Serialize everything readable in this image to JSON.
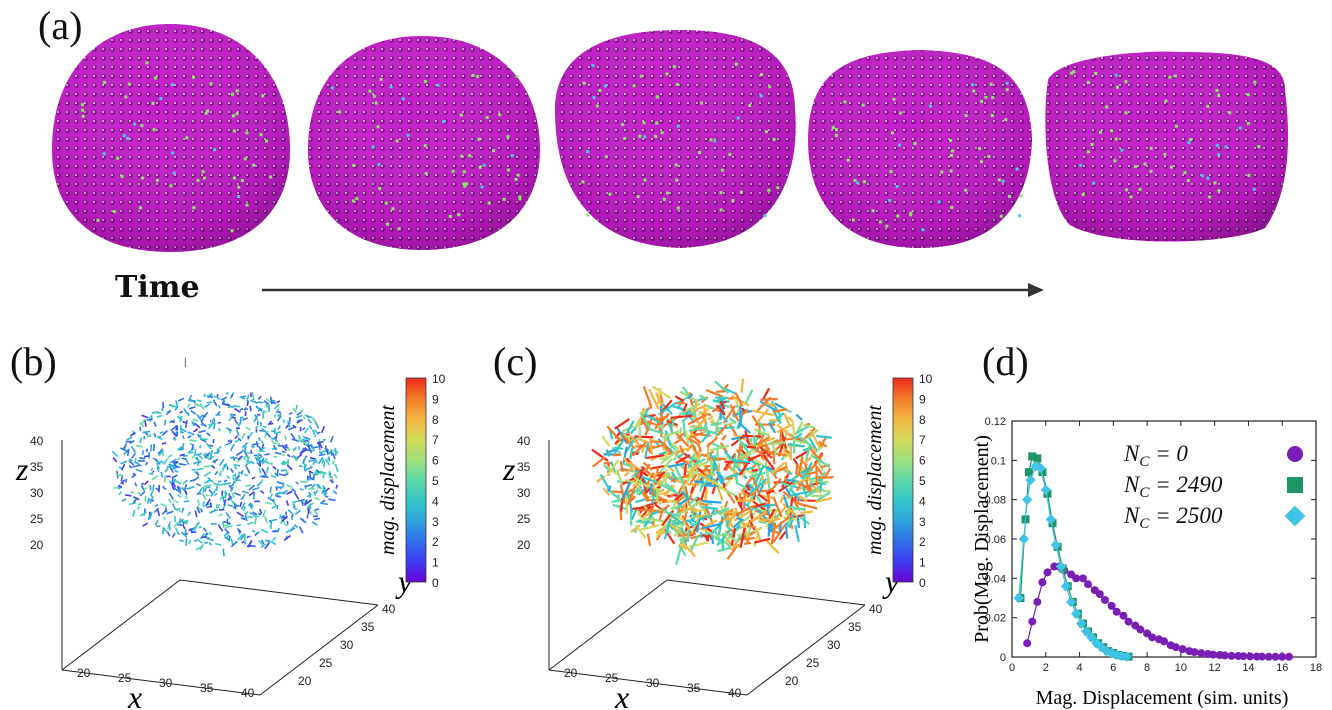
{
  "panels": {
    "a": {
      "label": "(a)",
      "time_label": "Time"
    },
    "b": {
      "label": "(b)"
    },
    "c": {
      "label": "(c)"
    },
    "d": {
      "label": "(d)"
    }
  },
  "scatter3d": {
    "z_ticks": [
      "40",
      "35",
      "30",
      "25",
      "20"
    ],
    "x_ticks": [
      "20",
      "25",
      "30",
      "35",
      "40"
    ],
    "y_ticks": [
      "40",
      "35",
      "30",
      "25",
      "20"
    ],
    "xlabel": "x",
    "ylabel": "y",
    "zlabel": "z",
    "colorbar_ticks": [
      "10",
      "9",
      "8",
      "7",
      "6",
      "5",
      "4",
      "3",
      "2",
      "1",
      "0"
    ],
    "colorbar_label": "mag. displacement"
  },
  "colors": {
    "membrane": "#c21ec8",
    "membrane_dark": "#8e0f95",
    "patch": "#8de26a",
    "nc0": "#7a1fb5",
    "nc2490": "#1e9566",
    "nc2500": "#3fc4e6"
  },
  "chart_data": {
    "type": "line",
    "xlabel": "Mag. Displacement (sim. units)",
    "ylabel": "Prob(Mag. Displacement)",
    "xlim": [
      0,
      18
    ],
    "ylim": [
      0,
      0.12
    ],
    "x_ticks": [
      "0",
      "2",
      "4",
      "6",
      "8",
      "10",
      "12",
      "14",
      "16",
      "18"
    ],
    "y_ticks": [
      "0",
      "0.02",
      "0.04",
      "0.06",
      "0.08",
      "0.1",
      "0.12"
    ],
    "legend_position": "top-right",
    "series": [
      {
        "name": "N_C = 0",
        "name_main": "N",
        "name_sub": "C",
        "name_rest": " = 0",
        "marker": "circle",
        "color": "#7a1fb5",
        "points": [
          [
            0.9,
            0.007
          ],
          [
            1.2,
            0.018
          ],
          [
            1.5,
            0.028
          ],
          [
            1.8,
            0.038
          ],
          [
            2.1,
            0.043
          ],
          [
            2.5,
            0.046
          ],
          [
            2.8,
            0.046
          ],
          [
            3.1,
            0.044
          ],
          [
            3.5,
            0.042
          ],
          [
            3.8,
            0.04
          ],
          [
            4.2,
            0.04
          ],
          [
            4.5,
            0.037
          ],
          [
            4.9,
            0.034
          ],
          [
            5.2,
            0.032
          ],
          [
            5.5,
            0.029
          ],
          [
            5.9,
            0.026
          ],
          [
            6.2,
            0.023
          ],
          [
            6.6,
            0.021
          ],
          [
            6.9,
            0.018
          ],
          [
            7.3,
            0.016
          ],
          [
            7.6,
            0.014
          ],
          [
            8.0,
            0.012
          ],
          [
            8.3,
            0.01
          ],
          [
            8.7,
            0.009
          ],
          [
            9.0,
            0.008
          ],
          [
            9.4,
            0.006
          ],
          [
            9.7,
            0.005
          ],
          [
            10.1,
            0.004
          ],
          [
            10.5,
            0.003
          ],
          [
            10.8,
            0.0025
          ],
          [
            11.2,
            0.002
          ],
          [
            11.6,
            0.0015
          ],
          [
            11.9,
            0.0012
          ],
          [
            12.3,
            0.001
          ],
          [
            12.6,
            0.0008
          ],
          [
            13.0,
            0.0006
          ],
          [
            13.4,
            0.0005
          ],
          [
            13.7,
            0.0004
          ],
          [
            14.1,
            0.0003
          ],
          [
            14.5,
            0.0002
          ],
          [
            14.8,
            0.0002
          ],
          [
            15.2,
            0.0001
          ],
          [
            15.6,
            0.0001
          ],
          [
            16.0,
            0.0001
          ],
          [
            16.4,
            0.0001
          ]
        ]
      },
      {
        "name": "N_C = 2490",
        "name_main": "N",
        "name_sub": "C",
        "name_rest": " = 2490",
        "marker": "square",
        "color": "#1e9566",
        "points": [
          [
            0.5,
            0.03
          ],
          [
            0.8,
            0.07
          ],
          [
            1.0,
            0.094
          ],
          [
            1.2,
            0.102
          ],
          [
            1.5,
            0.101
          ],
          [
            1.8,
            0.094
          ],
          [
            2.1,
            0.083
          ],
          [
            2.4,
            0.068
          ],
          [
            2.7,
            0.056
          ],
          [
            3.0,
            0.045
          ],
          [
            3.3,
            0.036
          ],
          [
            3.6,
            0.028
          ],
          [
            3.9,
            0.022
          ],
          [
            4.2,
            0.017
          ],
          [
            4.5,
            0.013
          ],
          [
            4.8,
            0.01
          ],
          [
            5.1,
            0.007
          ],
          [
            5.4,
            0.005
          ],
          [
            5.7,
            0.003
          ],
          [
            6.0,
            0.002
          ],
          [
            6.3,
            0.001
          ],
          [
            6.6,
            0.0005
          ],
          [
            6.9,
            0.0002
          ]
        ]
      },
      {
        "name": "N_C = 2500",
        "name_main": "N",
        "name_sub": "C",
        "name_rest": " = 2500",
        "marker": "diamond",
        "color": "#3fc4e6",
        "points": [
          [
            0.4,
            0.03
          ],
          [
            0.7,
            0.06
          ],
          [
            0.9,
            0.08
          ],
          [
            1.1,
            0.09
          ],
          [
            1.4,
            0.097
          ],
          [
            1.7,
            0.096
          ],
          [
            2.0,
            0.085
          ],
          [
            2.3,
            0.07
          ],
          [
            2.6,
            0.057
          ],
          [
            2.9,
            0.046
          ],
          [
            3.2,
            0.036
          ],
          [
            3.5,
            0.028
          ],
          [
            3.8,
            0.022
          ],
          [
            4.1,
            0.017
          ],
          [
            4.4,
            0.013
          ],
          [
            4.7,
            0.01
          ],
          [
            5.0,
            0.007
          ],
          [
            5.3,
            0.005
          ],
          [
            5.6,
            0.003
          ],
          [
            5.9,
            0.002
          ],
          [
            6.2,
            0.001
          ],
          [
            6.5,
            0.0005
          ],
          [
            6.8,
            0.0002
          ]
        ]
      }
    ]
  }
}
